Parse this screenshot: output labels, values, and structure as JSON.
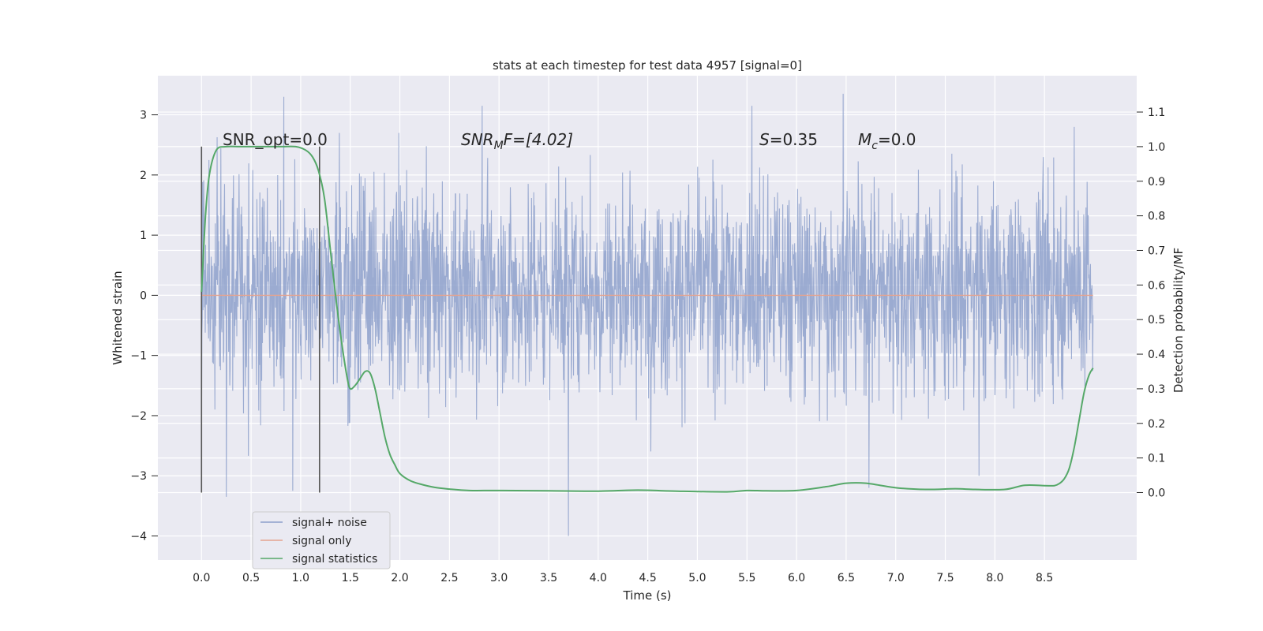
{
  "chart_data": {
    "type": "line",
    "title": "stats at each timestep for test data 4957 [signal=0]",
    "xlabel": "Time (s)",
    "ylabel": "Whitened strain",
    "y2label": "Detection probability/MF",
    "xlim": [
      -0.44,
      9.43
    ],
    "ylim": [
      -4.4,
      3.65
    ],
    "y2lim": [
      -0.195,
      1.205
    ],
    "xticks": [
      "0.0",
      "0.5",
      "1.0",
      "1.5",
      "2.0",
      "2.5",
      "3.0",
      "3.5",
      "4.0",
      "4.5",
      "5.0",
      "5.5",
      "6.0",
      "6.5",
      "7.0",
      "7.5",
      "8.0",
      "8.5"
    ],
    "yticks": [
      "3",
      "2",
      "1",
      "0",
      "−1",
      "−2",
      "−3",
      "−4"
    ],
    "y2ticks": [
      "1.1",
      "1.0",
      "0.9",
      "0.8",
      "0.7",
      "0.6",
      "0.5",
      "0.4",
      "0.3",
      "0.2",
      "0.1",
      "0.0"
    ],
    "grid": true,
    "legend_position": "lower-left",
    "annotations": {
      "snr_opt": "SNR_opt=0.0",
      "snr_mf_base": "SNR",
      "snr_mf_sub": "M",
      "snr_mf_tail": "F=[4.02]",
      "s_var": "S",
      "s_value": "=0.35",
      "mc_base": "M",
      "mc_sub": "c",
      "mc_value": "=0.0"
    },
    "vertical_markers": [
      0.0,
      1.19
    ],
    "series": [
      {
        "name": "signal+ noise",
        "color": "#8da0cb",
        "description": "whitened noise, duration ~9 s; spikes up to 3.3 and down to -4.0",
        "t_range": [
          0.0,
          8.99
        ],
        "envelope": [
          -1.0,
          1.4
        ],
        "extremes": [
          {
            "t": 0.0,
            "v": 2.2
          },
          {
            "t": 0.0,
            "v": -2.3
          },
          {
            "t": 0.25,
            "v": -3.35
          },
          {
            "t": 0.83,
            "v": 3.3
          },
          {
            "t": 0.92,
            "v": -3.25
          },
          {
            "t": 2.83,
            "v": 3.15
          },
          {
            "t": 3.7,
            "v": -4.0
          },
          {
            "t": 5.55,
            "v": 3.15
          },
          {
            "t": 6.47,
            "v": 3.35
          },
          {
            "t": 6.73,
            "v": -3.2
          },
          {
            "t": 7.84,
            "v": -3.0
          },
          {
            "t": 8.8,
            "v": 2.8
          }
        ]
      },
      {
        "name": "signal only",
        "color": "#e5a38f",
        "x": [
          0.0,
          8.99
        ],
        "y": [
          0.0,
          0.0
        ]
      },
      {
        "name": "signal statistics",
        "color": "#55a868",
        "axis": "right",
        "x": [
          0.0,
          0.04,
          0.08,
          0.15,
          0.25,
          0.4,
          0.6,
          0.8,
          0.95,
          1.05,
          1.12,
          1.18,
          1.24,
          1.3,
          1.36,
          1.42,
          1.47,
          1.5,
          1.55,
          1.6,
          1.65,
          1.7,
          1.75,
          1.8,
          1.85,
          1.9,
          1.95,
          2.0,
          2.1,
          2.2,
          2.35,
          2.5,
          2.7,
          3.0,
          3.5,
          4.0,
          4.4,
          4.8,
          5.3,
          5.5,
          5.7,
          6.0,
          6.3,
          6.5,
          6.7,
          7.0,
          7.3,
          7.6,
          7.8,
          8.1,
          8.3,
          8.5,
          8.6,
          8.65,
          8.7,
          8.75,
          8.8,
          8.85,
          8.9,
          8.95,
          8.99
        ],
        "y": [
          0.58,
          0.8,
          0.92,
          0.99,
          1.0,
          1.0,
          1.0,
          1.0,
          1.0,
          0.99,
          0.97,
          0.93,
          0.85,
          0.7,
          0.55,
          0.42,
          0.33,
          0.3,
          0.31,
          0.33,
          0.35,
          0.345,
          0.3,
          0.23,
          0.16,
          0.11,
          0.08,
          0.055,
          0.035,
          0.025,
          0.015,
          0.01,
          0.006,
          0.006,
          0.005,
          0.004,
          0.007,
          0.004,
          0.002,
          0.006,
          0.005,
          0.006,
          0.017,
          0.027,
          0.027,
          0.014,
          0.009,
          0.011,
          0.009,
          0.009,
          0.021,
          0.02,
          0.02,
          0.026,
          0.04,
          0.07,
          0.13,
          0.21,
          0.29,
          0.34,
          0.36
        ]
      }
    ]
  }
}
